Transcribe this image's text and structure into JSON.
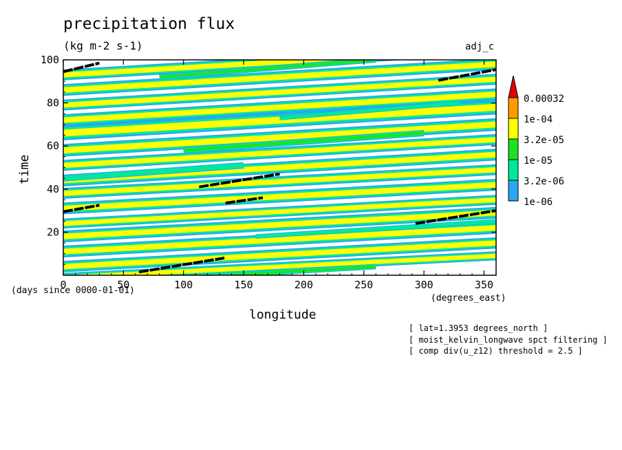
{
  "header": {
    "title": "precipitation flux",
    "units": "(kg m-2 s-1)",
    "corner_label": "adj_c"
  },
  "annotations": [
    "[ lat=1.3953 degrees_north ]",
    "[ moist_kelvin_longwave spct filtering ]",
    "[ comp div(u_z12) threshold = 2.5 ]"
  ],
  "chart_data": {
    "type": "heatmap",
    "title": "precipitation flux",
    "xlabel": "longitude",
    "ylabel": "time",
    "x_units": "(degrees_east)",
    "y_units": "(days since 0000-01-01)",
    "xlim": [
      0,
      360
    ],
    "ylim": [
      0,
      100
    ],
    "x_ticks": [
      0,
      50,
      100,
      150,
      200,
      250,
      300,
      350
    ],
    "y_ticks": [
      20,
      40,
      60,
      80,
      100
    ],
    "grid": false,
    "colorbar": {
      "levels": [
        "1e-06",
        "3.2e-06",
        "1e-05",
        "3.2e-05",
        "1e-04",
        "0.00032"
      ],
      "colors": [
        "#2aa7f0",
        "#00e8a0",
        "#1ee21e",
        "#ffff00",
        "#ff9b00",
        "#e60000"
      ],
      "overflow": "triangle-top"
    },
    "colors": {
      "ocean": "#ffffff",
      "line": "#000000"
    },
    "bands": [
      {
        "lon0": 0,
        "t0": -1,
        "lon1": 360,
        "t1": 9,
        "w": 2.0,
        "lvl": 3
      },
      {
        "lon0": 0,
        "t0": 4,
        "lon1": 360,
        "t1": 15,
        "w": 2.5,
        "lvl": 3
      },
      {
        "lon0": 0,
        "t0": 11,
        "lon1": 360,
        "t1": 22,
        "w": 2.6,
        "lvl": 3
      },
      {
        "lon0": 0,
        "t0": 18,
        "lon1": 360,
        "t1": 29,
        "w": 2.6,
        "lvl": 3
      },
      {
        "lon0": 0,
        "t0": 24,
        "lon1": 360,
        "t1": 35,
        "w": 2.2,
        "lvl": 3
      },
      {
        "lon0": 0,
        "t0": 31,
        "lon1": 360,
        "t1": 42,
        "w": 2.6,
        "lvl": 3
      },
      {
        "lon0": 0,
        "t0": 38,
        "lon1": 360,
        "t1": 49,
        "w": 2.4,
        "lvl": 3
      },
      {
        "lon0": 0,
        "t0": 44,
        "lon1": 360,
        "t1": 56,
        "w": 2.6,
        "lvl": 3
      },
      {
        "lon0": 0,
        "t0": 51,
        "lon1": 360,
        "t1": 63,
        "w": 2.4,
        "lvl": 3
      },
      {
        "lon0": 0,
        "t0": 58,
        "lon1": 360,
        "t1": 70,
        "w": 2.8,
        "lvl": 3
      },
      {
        "lon0": 0,
        "t0": 66,
        "lon1": 360,
        "t1": 78,
        "w": 3.2,
        "lvl": 3
      },
      {
        "lon0": 0,
        "t0": 72,
        "lon1": 360,
        "t1": 84,
        "w": 2.6,
        "lvl": 3
      },
      {
        "lon0": 0,
        "t0": 79,
        "lon1": 360,
        "t1": 91,
        "w": 2.4,
        "lvl": 3
      },
      {
        "lon0": 0,
        "t0": 86,
        "lon1": 360,
        "t1": 98,
        "w": 2.6,
        "lvl": 3
      },
      {
        "lon0": 0,
        "t0": 93,
        "lon1": 360,
        "t1": 105,
        "w": 2.4,
        "lvl": 3
      },
      {
        "lon0": 40,
        "t0": -3,
        "lon1": 260,
        "t1": 4,
        "w": 1.2,
        "lvl": 2
      },
      {
        "lon0": 160,
        "t0": 18,
        "lon1": 360,
        "t1": 25,
        "w": 1.0,
        "lvl": 1
      },
      {
        "lon0": 0,
        "t0": 45,
        "lon1": 150,
        "t1": 51,
        "w": 1.4,
        "lvl": 1
      },
      {
        "lon0": 100,
        "t0": 58,
        "lon1": 300,
        "t1": 66,
        "w": 1.4,
        "lvl": 2
      },
      {
        "lon0": 180,
        "t0": 73,
        "lon1": 330,
        "t1": 80,
        "w": 1.0,
        "lvl": 1
      },
      {
        "lon0": 80,
        "t0": 92,
        "lon1": 260,
        "t1": 100,
        "w": 1.2,
        "lvl": 2
      }
    ],
    "track_lines": [
      {
        "lon0": 0,
        "t0": 94.5,
        "lon1": 30,
        "t1": 98.5
      },
      {
        "lon0": 312,
        "t0": 90.5,
        "lon1": 360,
        "t1": 95.5
      },
      {
        "lon0": 113,
        "t0": 41,
        "lon1": 180,
        "t1": 47
      },
      {
        "lon0": 0,
        "t0": 29.5,
        "lon1": 30,
        "t1": 32.5
      },
      {
        "lon0": 135,
        "t0": 33.5,
        "lon1": 166,
        "t1": 36
      },
      {
        "lon0": 293,
        "t0": 24,
        "lon1": 360,
        "t1": 30
      },
      {
        "lon0": 63,
        "t0": 1.5,
        "lon1": 134,
        "t1": 8
      }
    ]
  }
}
